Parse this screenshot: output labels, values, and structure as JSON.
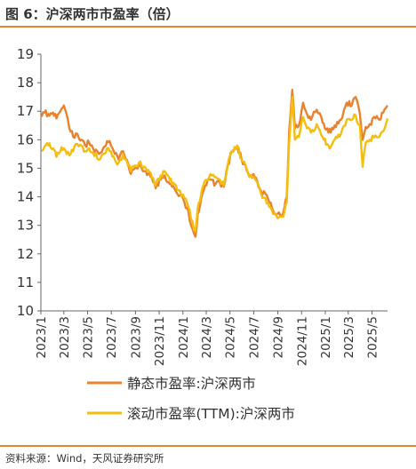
{
  "figure": {
    "title": "图 6：沪深两市市盈率（倍）",
    "source": "资料来源：Wind，天风证券研究所"
  },
  "chart_data": {
    "type": "line",
    "title": "",
    "xlabel": "",
    "ylabel": "",
    "ylim": [
      10,
      19
    ],
    "yticks": [
      10,
      11,
      12,
      13,
      14,
      15,
      16,
      17,
      18,
      19
    ],
    "xrange": [
      "2023-01-01",
      "2025-06-10"
    ],
    "xticks": [
      "2023/1",
      "2023/3",
      "2023/5",
      "2023/7",
      "2023/9",
      "2023/11",
      "2024/1",
      "2024/3",
      "2024/5",
      "2024/7",
      "2024/9",
      "2024/11",
      "2025/1",
      "2025/3",
      "2025/5"
    ],
    "grid": false,
    "legend": "bottom",
    "series": [
      {
        "name": "静态市盈率:沪深两市",
        "color": "#e8822e",
        "points": [
          [
            "2023-01-03",
            16.8
          ],
          [
            "2023-01-10",
            16.95
          ],
          [
            "2023-01-20",
            16.9
          ],
          [
            "2023-02-01",
            16.95
          ],
          [
            "2023-02-10",
            16.75
          ],
          [
            "2023-02-20",
            17.0
          ],
          [
            "2023-03-01",
            17.2
          ],
          [
            "2023-03-08",
            16.9
          ],
          [
            "2023-03-15",
            16.4
          ],
          [
            "2023-03-25",
            16.1
          ],
          [
            "2023-04-05",
            16.2
          ],
          [
            "2023-04-15",
            16.0
          ],
          [
            "2023-04-25",
            15.8
          ],
          [
            "2023-05-05",
            15.9
          ],
          [
            "2023-05-15",
            15.7
          ],
          [
            "2023-05-30",
            15.5
          ],
          [
            "2023-06-10",
            15.7
          ],
          [
            "2023-06-20",
            15.95
          ],
          [
            "2023-06-30",
            15.8
          ],
          [
            "2023-07-10",
            15.5
          ],
          [
            "2023-07-20",
            15.3
          ],
          [
            "2023-07-31",
            15.6
          ],
          [
            "2023-08-10",
            15.3
          ],
          [
            "2023-08-20",
            14.8
          ],
          [
            "2023-08-31",
            15.0
          ],
          [
            "2023-09-10",
            15.1
          ],
          [
            "2023-09-20",
            14.9
          ],
          [
            "2023-09-28",
            14.9
          ],
          [
            "2023-10-10",
            14.7
          ],
          [
            "2023-10-23",
            14.3
          ],
          [
            "2023-11-05",
            14.6
          ],
          [
            "2023-11-15",
            14.75
          ],
          [
            "2023-11-28",
            14.45
          ],
          [
            "2023-12-10",
            14.3
          ],
          [
            "2023-12-25",
            14.05
          ],
          [
            "2024-01-05",
            13.8
          ],
          [
            "2024-01-15",
            13.5
          ],
          [
            "2024-01-22",
            13.0
          ],
          [
            "2024-02-02",
            12.6
          ],
          [
            "2024-02-08",
            13.4
          ],
          [
            "2024-02-20",
            14.1
          ],
          [
            "2024-03-01",
            14.4
          ],
          [
            "2024-03-12",
            14.6
          ],
          [
            "2024-03-25",
            14.45
          ],
          [
            "2024-04-05",
            14.5
          ],
          [
            "2024-04-15",
            14.35
          ],
          [
            "2024-04-25",
            15.1
          ],
          [
            "2024-05-06",
            15.6
          ],
          [
            "2024-05-20",
            15.75
          ],
          [
            "2024-05-31",
            15.3
          ],
          [
            "2024-06-10",
            15.1
          ],
          [
            "2024-06-20",
            14.7
          ],
          [
            "2024-06-30",
            14.8
          ],
          [
            "2024-07-10",
            14.55
          ],
          [
            "2024-07-20",
            14.2
          ],
          [
            "2024-07-31",
            14.1
          ],
          [
            "2024-08-10",
            13.8
          ],
          [
            "2024-08-20",
            13.5
          ],
          [
            "2024-08-31",
            13.4
          ],
          [
            "2024-09-15",
            13.45
          ],
          [
            "2024-09-24",
            14.0
          ],
          [
            "2024-09-30",
            16.3
          ],
          [
            "2024-10-08",
            17.75
          ],
          [
            "2024-10-15",
            16.4
          ],
          [
            "2024-10-25",
            16.5
          ],
          [
            "2024-11-05",
            17.3
          ],
          [
            "2024-11-15",
            16.9
          ],
          [
            "2024-11-25",
            16.7
          ],
          [
            "2024-12-10",
            17.05
          ],
          [
            "2024-12-25",
            16.6
          ],
          [
            "2025-01-06",
            16.4
          ],
          [
            "2025-01-15",
            16.25
          ],
          [
            "2025-01-25",
            16.5
          ],
          [
            "2025-02-10",
            16.7
          ],
          [
            "2025-02-25",
            17.3
          ],
          [
            "2025-03-10",
            17.2
          ],
          [
            "2025-03-20",
            17.5
          ],
          [
            "2025-03-31",
            16.9
          ],
          [
            "2025-04-07",
            16.0
          ],
          [
            "2025-04-15",
            16.45
          ],
          [
            "2025-04-25",
            16.55
          ],
          [
            "2025-05-10",
            16.75
          ],
          [
            "2025-05-20",
            16.7
          ],
          [
            "2025-05-30",
            16.95
          ],
          [
            "2025-06-05",
            17.1
          ],
          [
            "2025-06-10",
            17.2
          ]
        ]
      },
      {
        "name": "滚动市盈率(TTM):沪深两市",
        "color": "#f4be0e",
        "points": [
          [
            "2023-01-03",
            15.6
          ],
          [
            "2023-01-10",
            15.75
          ],
          [
            "2023-01-20",
            15.8
          ],
          [
            "2023-02-01",
            15.7
          ],
          [
            "2023-02-10",
            15.4
          ],
          [
            "2023-02-20",
            15.6
          ],
          [
            "2023-03-01",
            15.7
          ],
          [
            "2023-03-08",
            15.5
          ],
          [
            "2023-03-15",
            15.45
          ],
          [
            "2023-03-25",
            15.6
          ],
          [
            "2023-04-05",
            15.85
          ],
          [
            "2023-04-15",
            15.8
          ],
          [
            "2023-04-25",
            15.6
          ],
          [
            "2023-05-05",
            15.7
          ],
          [
            "2023-05-15",
            15.55
          ],
          [
            "2023-05-30",
            15.3
          ],
          [
            "2023-06-10",
            15.5
          ],
          [
            "2023-06-20",
            15.7
          ],
          [
            "2023-06-30",
            15.6
          ],
          [
            "2023-07-10",
            15.3
          ],
          [
            "2023-07-20",
            15.2
          ],
          [
            "2023-07-31",
            15.5
          ],
          [
            "2023-08-10",
            15.25
          ],
          [
            "2023-08-20",
            14.9
          ],
          [
            "2023-08-31",
            15.1
          ],
          [
            "2023-09-10",
            15.2
          ],
          [
            "2023-09-20",
            15.0
          ],
          [
            "2023-09-28",
            15.0
          ],
          [
            "2023-10-10",
            14.85
          ],
          [
            "2023-10-23",
            14.4
          ],
          [
            "2023-11-05",
            14.75
          ],
          [
            "2023-11-15",
            14.9
          ],
          [
            "2023-11-28",
            14.6
          ],
          [
            "2023-12-10",
            14.45
          ],
          [
            "2023-12-25",
            14.2
          ],
          [
            "2024-01-05",
            13.95
          ],
          [
            "2024-01-15",
            13.65
          ],
          [
            "2024-01-22",
            13.2
          ],
          [
            "2024-02-02",
            12.8
          ],
          [
            "2024-02-08",
            13.6
          ],
          [
            "2024-02-20",
            14.3
          ],
          [
            "2024-03-01",
            14.6
          ],
          [
            "2024-03-12",
            14.8
          ],
          [
            "2024-03-25",
            14.7
          ],
          [
            "2024-04-05",
            14.6
          ],
          [
            "2024-04-15",
            14.4
          ],
          [
            "2024-04-25",
            15.1
          ],
          [
            "2024-05-06",
            15.6
          ],
          [
            "2024-05-20",
            15.8
          ],
          [
            "2024-05-31",
            15.3
          ],
          [
            "2024-06-10",
            15.1
          ],
          [
            "2024-06-20",
            14.7
          ],
          [
            "2024-06-30",
            14.7
          ],
          [
            "2024-07-10",
            14.5
          ],
          [
            "2024-07-20",
            14.1
          ],
          [
            "2024-07-31",
            13.95
          ],
          [
            "2024-08-10",
            13.65
          ],
          [
            "2024-08-20",
            13.4
          ],
          [
            "2024-08-31",
            13.25
          ],
          [
            "2024-09-15",
            13.3
          ],
          [
            "2024-09-24",
            13.8
          ],
          [
            "2024-09-30",
            15.9
          ],
          [
            "2024-10-08",
            17.5
          ],
          [
            "2024-10-15",
            16.0
          ],
          [
            "2024-10-25",
            16.1
          ],
          [
            "2024-11-05",
            16.8
          ],
          [
            "2024-11-15",
            16.4
          ],
          [
            "2024-11-25",
            16.25
          ],
          [
            "2024-12-10",
            16.55
          ],
          [
            "2024-12-25",
            16.1
          ],
          [
            "2025-01-06",
            15.85
          ],
          [
            "2025-01-15",
            15.75
          ],
          [
            "2025-01-25",
            16.0
          ],
          [
            "2025-02-10",
            16.2
          ],
          [
            "2025-02-25",
            16.7
          ],
          [
            "2025-03-10",
            16.7
          ],
          [
            "2025-03-20",
            16.85
          ],
          [
            "2025-03-31",
            16.5
          ],
          [
            "2025-04-07",
            15.05
          ],
          [
            "2025-04-15",
            15.9
          ],
          [
            "2025-04-25",
            16.0
          ],
          [
            "2025-05-10",
            16.15
          ],
          [
            "2025-05-20",
            16.1
          ],
          [
            "2025-05-30",
            16.3
          ],
          [
            "2025-06-05",
            16.5
          ],
          [
            "2025-06-10",
            16.75
          ]
        ]
      }
    ]
  }
}
